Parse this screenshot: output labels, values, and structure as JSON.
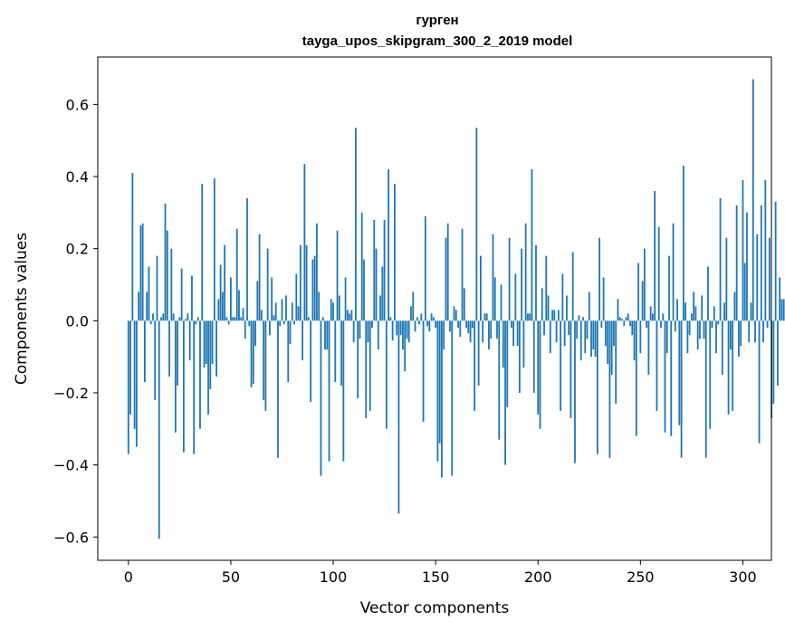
{
  "chart_data": {
    "type": "bar",
    "title": "гурген",
    "subtitle": "tayga_upos_skipgram_300_2_2019 model",
    "xlabel": "Vector components",
    "ylabel": "Components values",
    "xlim": [
      -14.95,
      313.95
    ],
    "ylim": [
      -0.6646,
      0.7315
    ],
    "grid": false,
    "legend": "none",
    "bar_color": "#1f77b4",
    "x_ticks": [
      0,
      50,
      100,
      150,
      200,
      250,
      300
    ],
    "y_ticks": [
      -0.6,
      -0.4,
      -0.2,
      0.0,
      0.2,
      0.4,
      0.6
    ],
    "x_tick_labels": [
      "0",
      "50",
      "100",
      "150",
      "200",
      "250",
      "300"
    ],
    "y_tick_labels": [
      "−0.6",
      "−0.4",
      "−0.2",
      "0.0",
      "0.2",
      "0.4",
      "0.6"
    ],
    "categories_start": 0,
    "values": [
      -0.37,
      -0.26,
      0.41,
      -0.3,
      -0.35,
      0.08,
      0.265,
      0.27,
      -0.17,
      0.08,
      0.15,
      -0.01,
      0.02,
      -0.22,
      0.18,
      -0.605,
      0.01,
      0.02,
      0.325,
      0.25,
      -0.155,
      0.2,
      0.02,
      -0.31,
      -0.18,
      0.01,
      0.145,
      -0.365,
      0.005,
      0.02,
      -0.11,
      0.125,
      -0.37,
      -0.01,
      0.01,
      -0.3,
      0.38,
      -0.13,
      -0.12,
      -0.26,
      -0.19,
      -0.12,
      0.395,
      -0.155,
      0.06,
      0.155,
      0.08,
      0.21,
      0.01,
      -0.01,
      0.12,
      0.01,
      0.01,
      0.255,
      0.085,
      0.01,
      0.035,
      -0.05,
      0.34,
      -0.015,
      -0.185,
      -0.175,
      -0.07,
      0.11,
      0.24,
      0.03,
      -0.22,
      -0.25,
      0.2,
      -0.04,
      0.12,
      0.015,
      0.05,
      -0.38,
      -0.015,
      0.06,
      -0.01,
      0.07,
      -0.17,
      -0.065,
      0.05,
      -0.01,
      0.13,
      0.04,
      0.21,
      -0.11,
      0.435,
      0.21,
      0.01,
      -0.225,
      0.17,
      0.18,
      0.27,
      0.08,
      -0.43,
      0.01,
      -0.08,
      -0.08,
      -0.39,
      0.06,
      0.05,
      -0.17,
      0.25,
      0.07,
      -0.18,
      -0.39,
      0.12,
      0.03,
      0.02,
      0.03,
      -0.06,
      0.535,
      -0.215,
      -0.05,
      0.3,
      0.17,
      -0.27,
      -0.06,
      -0.25,
      -0.02,
      0.28,
      0.2,
      -0.08,
      0.07,
      0.15,
      0.28,
      -0.3,
      0.42,
      0.01,
      -0.055,
      0.38,
      -0.04,
      -0.535,
      -0.04,
      -0.08,
      -0.14,
      -0.05,
      -0.06,
      0.04,
      0.08,
      -0.03,
      0.01,
      -0.01,
      0.02,
      -0.28,
      0.29,
      -0.015,
      -0.03,
      0.02,
      0.01,
      -0.02,
      -0.39,
      -0.34,
      -0.435,
      -0.08,
      0.23,
      0.27,
      -0.03,
      -0.43,
      0.04,
      0.03,
      -0.02,
      -0.045,
      0.255,
      0.09,
      -0.02,
      -0.035,
      -0.06,
      -0.02,
      -0.25,
      0.535,
      -0.18,
      0.18,
      -0.06,
      0.02,
      0.02,
      -0.08,
      -0.05,
      0.24,
      0.12,
      -0.05,
      -0.33,
      0.1,
      -0.13,
      -0.4,
      -0.24,
      0.23,
      -0.02,
      -0.07,
      0.13,
      -0.07,
      -0.2,
      0.2,
      -0.13,
      0.27,
      0.02,
      0.02,
      0.42,
      -0.2,
      0.21,
      -0.26,
      -0.3,
      0.09,
      -0.04,
      0.18,
      0.07,
      -0.09,
      0.03,
      0.03,
      -0.06,
      0.03,
      -0.25,
      0.13,
      -0.07,
      0.07,
      -0.04,
      -0.27,
      0.19,
      -0.395,
      -0.05,
      0.015,
      -0.11,
      0.01,
      -0.09,
      -0.05,
      0.08,
      -0.1,
      -0.08,
      -0.1,
      -0.37,
      0.23,
      -0.02,
      0.12,
      -0.07,
      -0.12,
      -0.38,
      -0.15,
      -0.07,
      -0.23,
      0.06,
      0.01,
      0.005,
      -0.015,
      0.01,
      0.02,
      -0.015,
      -0.04,
      -0.11,
      -0.32,
      0.16,
      -0.09,
      0.11,
      0.2,
      -0.02,
      -0.15,
      0.04,
      0.02,
      0.36,
      -0.25,
      0.26,
      -0.02,
      0.02,
      -0.31,
      -0.09,
      0.18,
      -0.32,
      0.27,
      -0.03,
      0.06,
      -0.29,
      -0.38,
      0.43,
      0.05,
      -0.09,
      -0.04,
      0.02,
      0.08,
      0.04,
      -0.08,
      -0.05,
      0.07,
      -0.05,
      -0.38,
      0.15,
      -0.3,
      -0.02,
      0.04,
      -0.09,
      -0.01,
      0.34,
      -0.15,
      0.05,
      0.23,
      -0.26,
      -0.08,
      -0.25,
      0.08,
      0.32,
      -0.1,
      -0.07,
      0.39,
      0.16,
      0.3,
      -0.06,
      0.05,
      0.67,
      -0.06,
      0.24,
      -0.34,
      0.32,
      -0.06,
      0.39,
      -0.02,
      0.23,
      -0.27,
      -0.23,
      0.33,
      -0.18,
      0.12,
      0.06,
      0.06
    ]
  }
}
